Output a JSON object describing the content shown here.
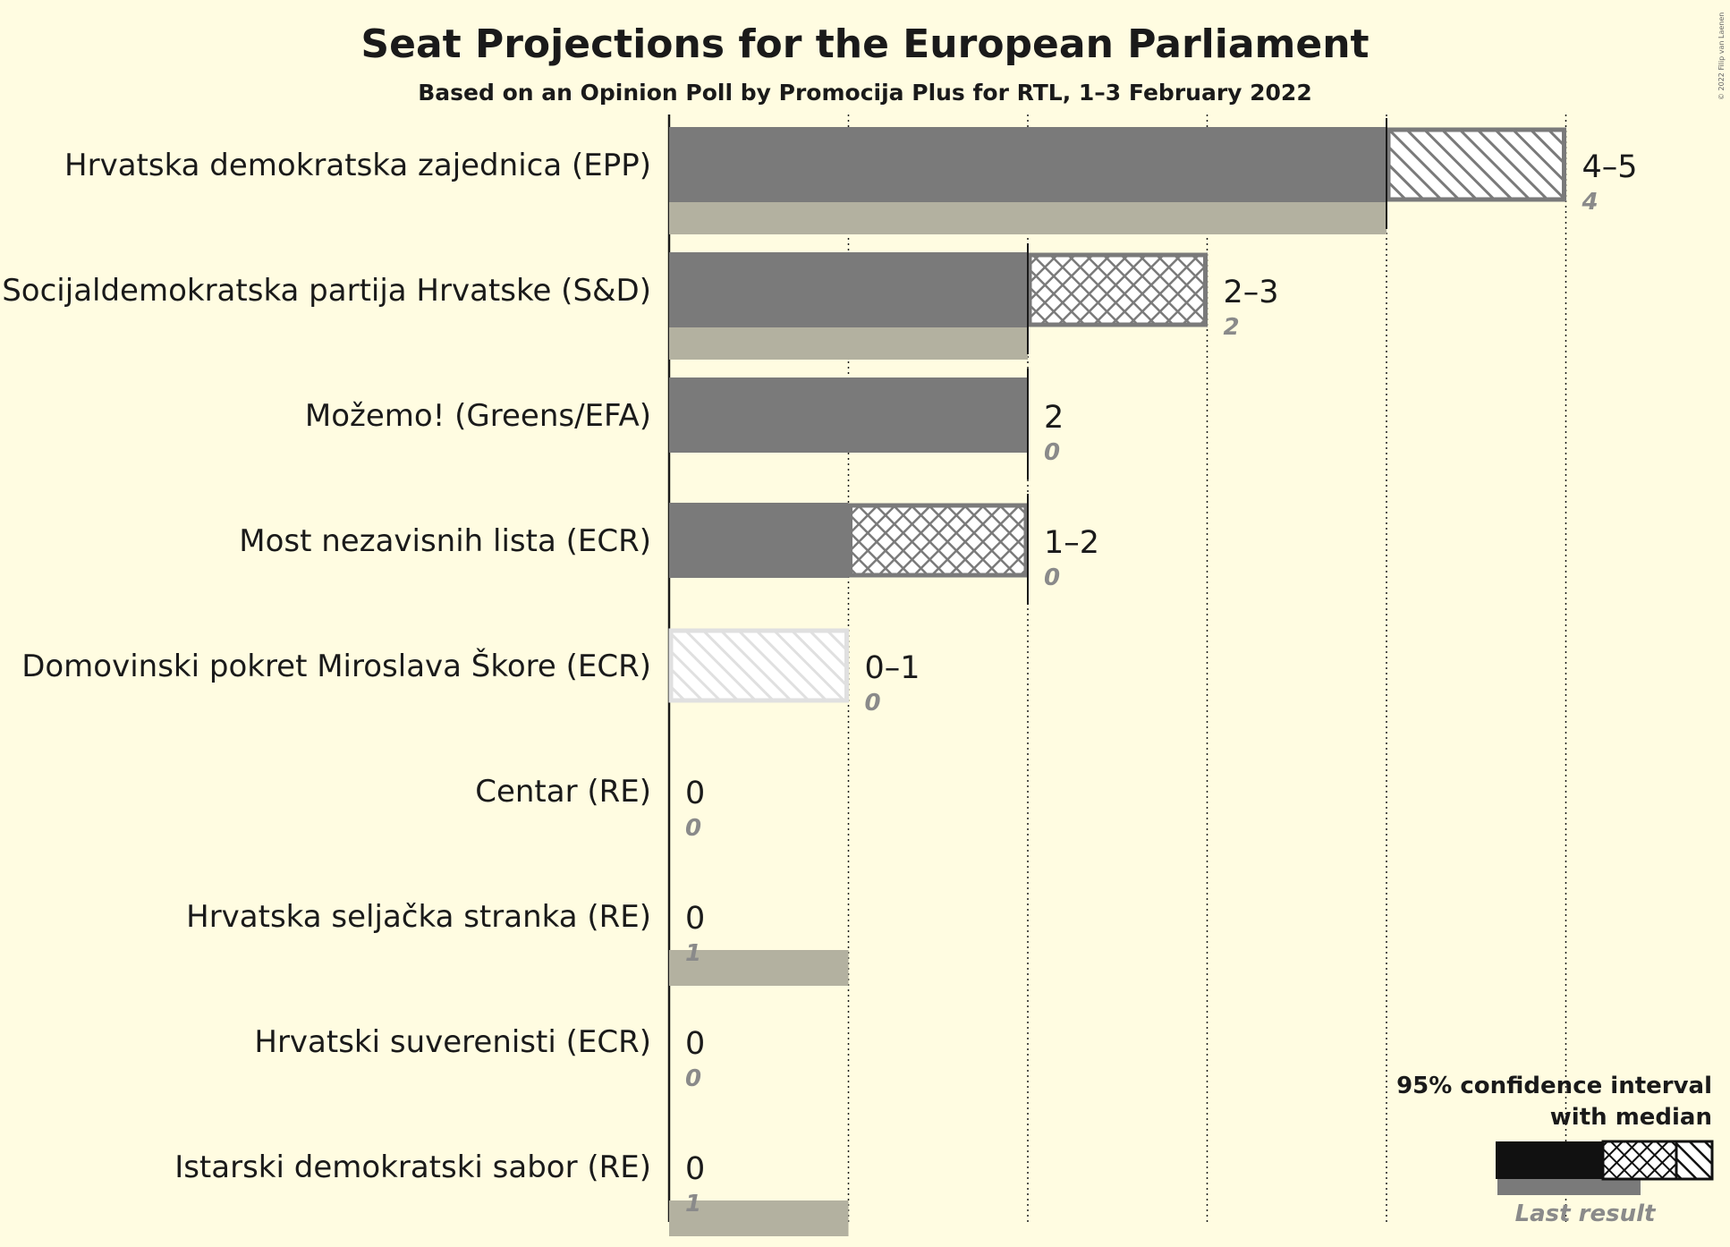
{
  "chart_data": {
    "type": "bar",
    "title": "Seat Projections for the European Parliament",
    "subtitle": "Based on an Opinion Poll by Promocija Plus for RTL, 1–3 February 2022",
    "xlim": [
      0,
      5
    ],
    "orientation": "horizontal",
    "parties": [
      {
        "name": "Hrvatska demokratska zajednica (EPP)",
        "median": 4,
        "low": 4,
        "high": 5,
        "range_label": "4–5",
        "last_result": 4,
        "last_label": "4",
        "color": "#7a7a7a"
      },
      {
        "name": "Socijaldemokratska partija Hrvatske (S&D)",
        "median": 2,
        "low": 2,
        "high": 3,
        "range_label": "2–3",
        "last_result": 2,
        "last_label": "2",
        "color": "#7a7a7a"
      },
      {
        "name": "Možemo! (Greens/EFA)",
        "median": 2,
        "low": 2,
        "high": 2,
        "range_label": "2",
        "last_result": 0,
        "last_label": "0",
        "color": "#7a7a7a"
      },
      {
        "name": "Most nezavisnih lista (ECR)",
        "median": 2,
        "low": 1,
        "high": 2,
        "range_label": "1–2",
        "last_result": 0,
        "last_label": "0",
        "color": "#7a7a7a"
      },
      {
        "name": "Domovinski pokret Miroslava Škore (ECR)",
        "median": 0,
        "low": 0,
        "high": 1,
        "range_label": "0–1",
        "last_result": 0,
        "last_label": "0",
        "color": "#e0e0e0"
      },
      {
        "name": "Centar (RE)",
        "median": 0,
        "low": 0,
        "high": 0,
        "range_label": "0",
        "last_result": 0,
        "last_label": "0",
        "color": "#7a7a7a"
      },
      {
        "name": "Hrvatska seljačka stranka (RE)",
        "median": 0,
        "low": 0,
        "high": 0,
        "range_label": "0",
        "last_result": 1,
        "last_label": "1",
        "color": "#7a7a7a"
      },
      {
        "name": "Hrvatski suverenisti (ECR)",
        "median": 0,
        "low": 0,
        "high": 0,
        "range_label": "0",
        "last_result": 0,
        "last_label": "0",
        "color": "#7a7a7a"
      },
      {
        "name": "Istarski demokratski sabor (RE)",
        "median": 0,
        "low": 0,
        "high": 0,
        "range_label": "0",
        "last_result": 1,
        "last_label": "1",
        "color": "#7a7a7a"
      }
    ],
    "legend": {
      "line1": "95% confidence interval",
      "line2": "with median",
      "last": "Last result",
      "placement": "bottom-right"
    },
    "colors": {
      "background": "#FFFCE1",
      "bar": "#7a7a7a",
      "last_result": "#b3b1a0",
      "legend_bar": "#111111"
    },
    "copyright": "© 2022 Filip van Laenen"
  }
}
